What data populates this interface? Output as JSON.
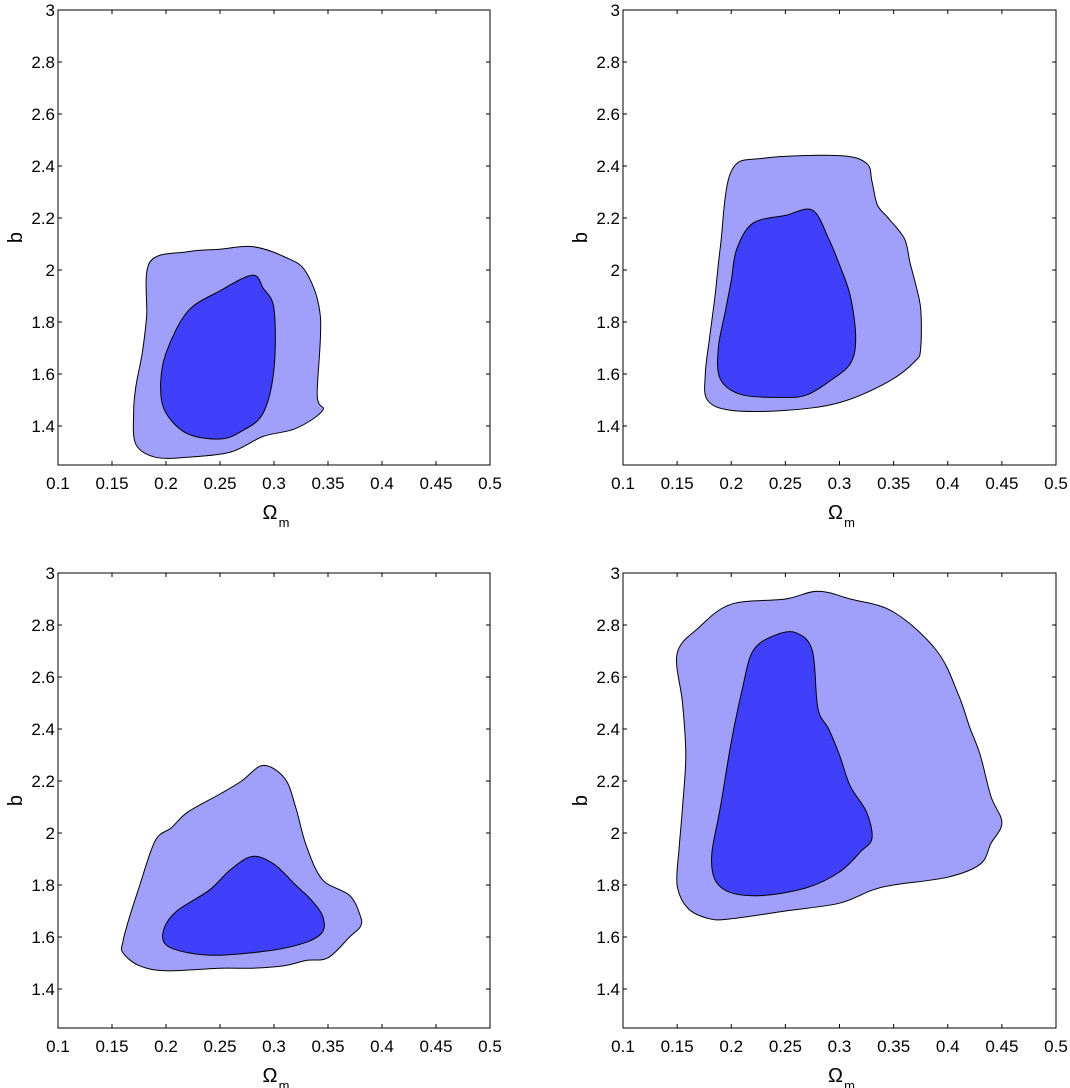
{
  "chart_data": [
    {
      "type": "contour",
      "xlabel": "Ω",
      "xlabel_sub": "m",
      "ylabel": "b",
      "xlim": [
        0.1,
        0.5
      ],
      "ylim": [
        1.25,
        3.0
      ],
      "xticks": [
        "0.1",
        "0.15",
        "0.2",
        "0.25",
        "0.3",
        "0.35",
        "0.4",
        "0.45",
        "0.5"
      ],
      "yticks": [
        "1.4",
        "1.6",
        "1.8",
        "2",
        "2.2",
        "2.4",
        "2.6",
        "2.8",
        "3"
      ],
      "grid": false,
      "regions": [
        {
          "name": "",
          "level": "outer",
          "color": "#a0a0fb",
          "points": [
            [
              0.185,
              2.03
            ],
            [
              0.22,
              2.07
            ],
            [
              0.25,
              2.08
            ],
            [
              0.28,
              2.09
            ],
            [
              0.31,
              2.05
            ],
            [
              0.33,
              1.99
            ],
            [
              0.343,
              1.82
            ],
            [
              0.34,
              1.52
            ],
            [
              0.345,
              1.46
            ],
            [
              0.32,
              1.39
            ],
            [
              0.29,
              1.36
            ],
            [
              0.26,
              1.3
            ],
            [
              0.22,
              1.28
            ],
            [
              0.19,
              1.28
            ],
            [
              0.172,
              1.33
            ],
            [
              0.17,
              1.45
            ],
            [
              0.172,
              1.55
            ],
            [
              0.178,
              1.68
            ],
            [
              0.182,
              1.82
            ]
          ]
        },
        {
          "name": "",
          "level": "inner",
          "color": "#4040fb",
          "points": [
            [
              0.2,
              1.68
            ],
            [
              0.22,
              1.84
            ],
            [
              0.25,
              1.92
            ],
            [
              0.28,
              1.98
            ],
            [
              0.29,
              1.93
            ],
            [
              0.3,
              1.85
            ],
            [
              0.3,
              1.62
            ],
            [
              0.29,
              1.45
            ],
            [
              0.27,
              1.38
            ],
            [
              0.25,
              1.35
            ],
            [
              0.22,
              1.37
            ],
            [
              0.2,
              1.45
            ],
            [
              0.195,
              1.55
            ]
          ]
        }
      ]
    },
    {
      "type": "contour",
      "xlabel": "Ω",
      "xlabel_sub": "m",
      "ylabel": "b",
      "xlim": [
        0.1,
        0.5
      ],
      "ylim": [
        1.25,
        3.0
      ],
      "xticks": [
        "0.1",
        "0.15",
        "0.2",
        "0.25",
        "0.3",
        "0.35",
        "0.4",
        "0.45",
        "0.5"
      ],
      "yticks": [
        "1.4",
        "1.6",
        "1.8",
        "2",
        "2.2",
        "2.4",
        "2.6",
        "2.8",
        "3"
      ],
      "grid": false,
      "regions": [
        {
          "name": "",
          "level": "outer",
          "color": "#a0a0fb",
          "points": [
            [
              0.2,
              2.38
            ],
            [
              0.23,
              2.43
            ],
            [
              0.3,
              2.44
            ],
            [
              0.325,
              2.41
            ],
            [
              0.33,
              2.34
            ],
            [
              0.335,
              2.25
            ],
            [
              0.345,
              2.2
            ],
            [
              0.36,
              2.12
            ],
            [
              0.365,
              2.03
            ],
            [
              0.37,
              1.95
            ],
            [
              0.375,
              1.85
            ],
            [
              0.375,
              1.7
            ],
            [
              0.37,
              1.65
            ],
            [
              0.345,
              1.57
            ],
            [
              0.3,
              1.49
            ],
            [
              0.25,
              1.46
            ],
            [
              0.2,
              1.46
            ],
            [
              0.178,
              1.5
            ],
            [
              0.176,
              1.6
            ],
            [
              0.18,
              1.74
            ],
            [
              0.185,
              1.9
            ],
            [
              0.19,
              2.09
            ]
          ]
        },
        {
          "name": "",
          "level": "inner",
          "color": "#4040fb",
          "points": [
            [
              0.205,
              2.08
            ],
            [
              0.22,
              2.18
            ],
            [
              0.25,
              2.21
            ],
            [
              0.275,
              2.23
            ],
            [
              0.29,
              2.12
            ],
            [
              0.3,
              2.02
            ],
            [
              0.31,
              1.9
            ],
            [
              0.315,
              1.74
            ],
            [
              0.31,
              1.64
            ],
            [
              0.29,
              1.57
            ],
            [
              0.27,
              1.52
            ],
            [
              0.25,
              1.51
            ],
            [
              0.21,
              1.52
            ],
            [
              0.19,
              1.58
            ],
            [
              0.188,
              1.7
            ],
            [
              0.195,
              1.85
            ],
            [
              0.2,
              1.96
            ]
          ]
        }
      ]
    },
    {
      "type": "contour",
      "xlabel": "Ω",
      "xlabel_sub": "m",
      "ylabel": "b",
      "xlim": [
        0.1,
        0.5
      ],
      "ylim": [
        1.25,
        3.0
      ],
      "xticks": [
        "0.1",
        "0.15",
        "0.2",
        "0.25",
        "0.3",
        "0.35",
        "0.4",
        "0.45",
        "0.5"
      ],
      "yticks": [
        "1.4",
        "1.6",
        "1.8",
        "2",
        "2.2",
        "2.4",
        "2.6",
        "2.8",
        "3"
      ],
      "grid": false,
      "regions": [
        {
          "name": "",
          "level": "outer",
          "color": "#a0a0fb",
          "points": [
            [
              0.19,
              1.97
            ],
            [
              0.205,
              2.02
            ],
            [
              0.22,
              2.08
            ],
            [
              0.25,
              2.15
            ],
            [
              0.27,
              2.2
            ],
            [
              0.29,
              2.26
            ],
            [
              0.31,
              2.21
            ],
            [
              0.32,
              2.1
            ],
            [
              0.33,
              1.95
            ],
            [
              0.345,
              1.82
            ],
            [
              0.37,
              1.76
            ],
            [
              0.38,
              1.68
            ],
            [
              0.38,
              1.64
            ],
            [
              0.37,
              1.6
            ],
            [
              0.35,
              1.52
            ],
            [
              0.33,
              1.51
            ],
            [
              0.31,
              1.49
            ],
            [
              0.28,
              1.48
            ],
            [
              0.25,
              1.48
            ],
            [
              0.2,
              1.47
            ],
            [
              0.175,
              1.49
            ],
            [
              0.16,
              1.54
            ],
            [
              0.16,
              1.58
            ],
            [
              0.165,
              1.66
            ],
            [
              0.175,
              1.79
            ]
          ]
        },
        {
          "name": "",
          "level": "inner",
          "color": "#4040fb",
          "points": [
            [
              0.21,
              1.7
            ],
            [
              0.24,
              1.78
            ],
            [
              0.26,
              1.86
            ],
            [
              0.28,
              1.91
            ],
            [
              0.3,
              1.88
            ],
            [
              0.32,
              1.8
            ],
            [
              0.335,
              1.74
            ],
            [
              0.345,
              1.68
            ],
            [
              0.345,
              1.62
            ],
            [
              0.33,
              1.58
            ],
            [
              0.3,
              1.55
            ],
            [
              0.25,
              1.53
            ],
            [
              0.22,
              1.54
            ],
            [
              0.2,
              1.57
            ],
            [
              0.198,
              1.63
            ]
          ]
        }
      ]
    },
    {
      "type": "contour",
      "xlabel": "Ω",
      "xlabel_sub": "m",
      "ylabel": "b",
      "xlim": [
        0.1,
        0.5
      ],
      "ylim": [
        1.25,
        3.0
      ],
      "xticks": [
        "0.1",
        "0.15",
        "0.2",
        "0.25",
        "0.3",
        "0.35",
        "0.4",
        "0.45",
        "0.5"
      ],
      "yticks": [
        "1.4",
        "1.6",
        "1.8",
        "2",
        "2.2",
        "2.4",
        "2.6",
        "2.8",
        "3"
      ],
      "grid": false,
      "regions": [
        {
          "name": "",
          "level": "outer",
          "color": "#a0a0fb",
          "points": [
            [
              0.15,
              2.69
            ],
            [
              0.17,
              2.79
            ],
            [
              0.2,
              2.88
            ],
            [
              0.25,
              2.9
            ],
            [
              0.28,
              2.93
            ],
            [
              0.31,
              2.9
            ],
            [
              0.35,
              2.85
            ],
            [
              0.39,
              2.7
            ],
            [
              0.41,
              2.53
            ],
            [
              0.42,
              2.41
            ],
            [
              0.43,
              2.3
            ],
            [
              0.44,
              2.14
            ],
            [
              0.45,
              2.04
            ],
            [
              0.44,
              1.96
            ],
            [
              0.43,
              1.88
            ],
            [
              0.4,
              1.83
            ],
            [
              0.35,
              1.8
            ],
            [
              0.33,
              1.78
            ],
            [
              0.3,
              1.73
            ],
            [
              0.25,
              1.7
            ],
            [
              0.2,
              1.67
            ],
            [
              0.18,
              1.67
            ],
            [
              0.16,
              1.71
            ],
            [
              0.15,
              1.8
            ],
            [
              0.152,
              1.95
            ],
            [
              0.155,
              2.1
            ],
            [
              0.158,
              2.3
            ],
            [
              0.155,
              2.5
            ]
          ]
        },
        {
          "name": "",
          "level": "inner",
          "color": "#4040fb",
          "points": [
            [
              0.2,
              2.35
            ],
            [
              0.21,
              2.55
            ],
            [
              0.22,
              2.7
            ],
            [
              0.24,
              2.76
            ],
            [
              0.26,
              2.77
            ],
            [
              0.275,
              2.7
            ],
            [
              0.28,
              2.48
            ],
            [
              0.29,
              2.4
            ],
            [
              0.3,
              2.3
            ],
            [
              0.31,
              2.18
            ],
            [
              0.325,
              2.08
            ],
            [
              0.33,
              1.98
            ],
            [
              0.32,
              1.93
            ],
            [
              0.3,
              1.85
            ],
            [
              0.27,
              1.79
            ],
            [
              0.23,
              1.76
            ],
            [
              0.2,
              1.77
            ],
            [
              0.185,
              1.82
            ],
            [
              0.182,
              1.92
            ],
            [
              0.19,
              2.1
            ]
          ]
        }
      ]
    }
  ]
}
